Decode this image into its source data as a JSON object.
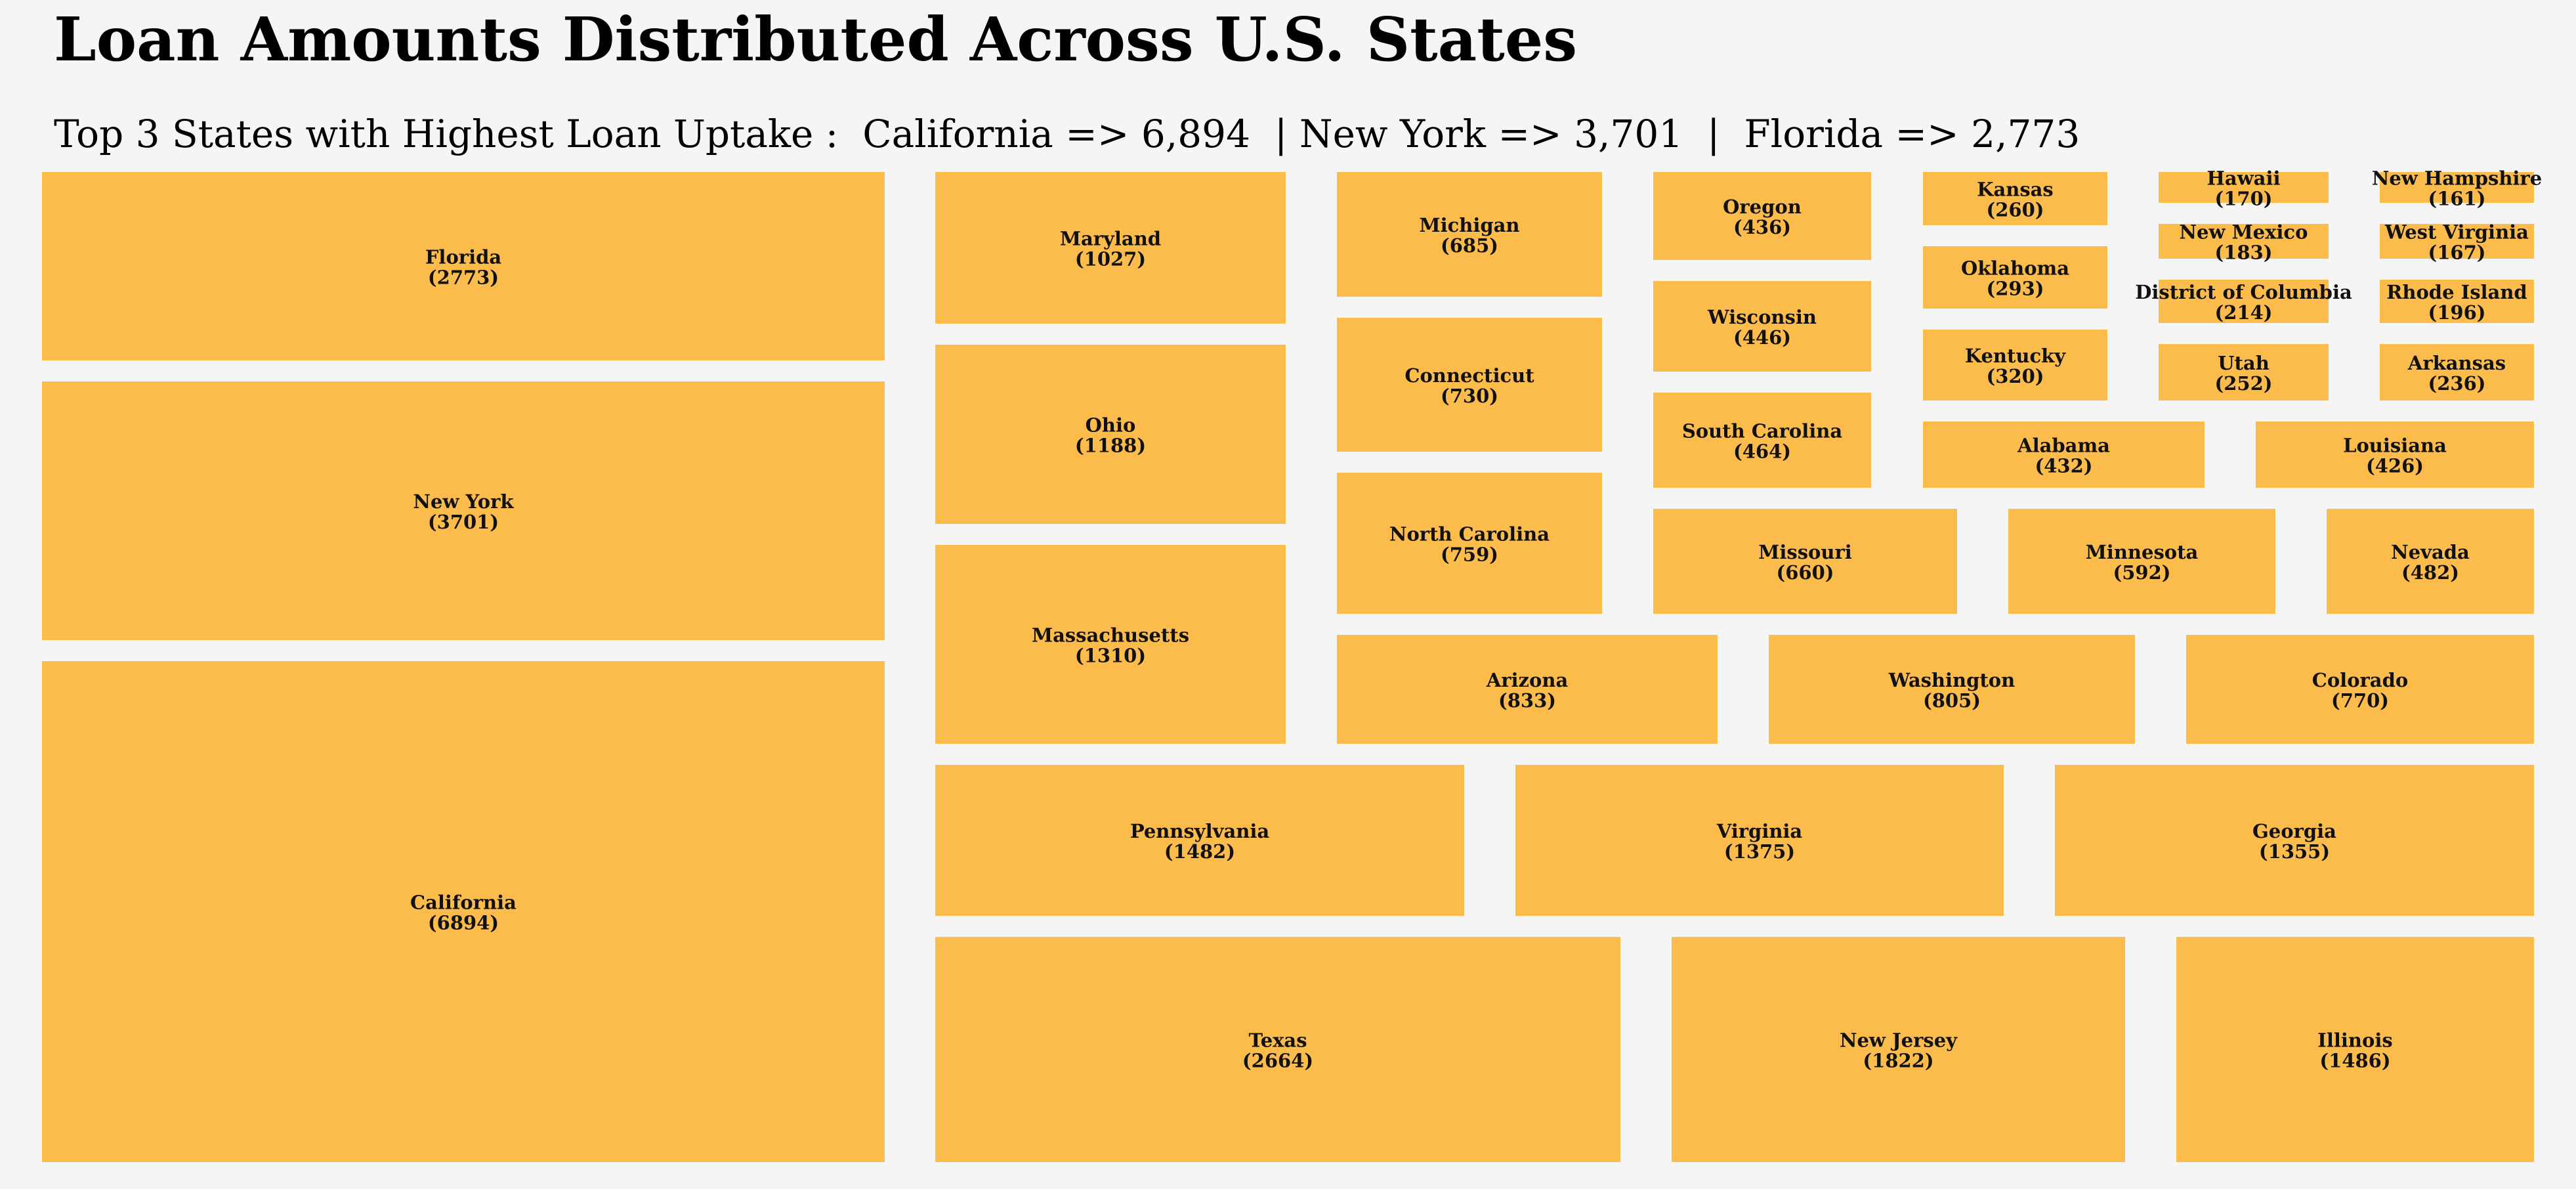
{
  "title": "Loan Amounts Distributed Across U.S. States",
  "subtitle": "Top 3 States with Highest Loan Uptake :  California => 6,894  | New York => 3,701  |  Florida => 2,773",
  "colors": {
    "tile": "#fbbc4c",
    "background": "#f5f5f5"
  },
  "chart_data": {
    "type": "treemap",
    "items": [
      {
        "label": "Florida",
        "value": 2773
      },
      {
        "label": "New York",
        "value": 3701
      },
      {
        "label": "California",
        "value": 6894
      },
      {
        "label": "Maryland",
        "value": 1027
      },
      {
        "label": "Ohio",
        "value": 1188
      },
      {
        "label": "Massachusetts",
        "value": 1310
      },
      {
        "label": "Michigan",
        "value": 685
      },
      {
        "label": "Connecticut",
        "value": 730
      },
      {
        "label": "North Carolina",
        "value": 759
      },
      {
        "label": "Oregon",
        "value": 436
      },
      {
        "label": "Wisconsin",
        "value": 446
      },
      {
        "label": "South Carolina",
        "value": 464
      },
      {
        "label": "Kansas",
        "value": 260
      },
      {
        "label": "Oklahoma",
        "value": 293
      },
      {
        "label": "Kentucky",
        "value": 320
      },
      {
        "label": "Hawaii",
        "value": 170
      },
      {
        "label": "New Mexico",
        "value": 183
      },
      {
        "label": "District of Columbia",
        "value": 214
      },
      {
        "label": "Utah",
        "value": 252
      },
      {
        "label": "New Hampshire",
        "value": 161
      },
      {
        "label": "West Virginia",
        "value": 167
      },
      {
        "label": "Rhode Island",
        "value": 196
      },
      {
        "label": "Arkansas",
        "value": 236
      },
      {
        "label": "Alabama",
        "value": 432
      },
      {
        "label": "Louisiana",
        "value": 426
      },
      {
        "label": "Missouri",
        "value": 660
      },
      {
        "label": "Minnesota",
        "value": 592
      },
      {
        "label": "Nevada",
        "value": 482
      },
      {
        "label": "Arizona",
        "value": 833
      },
      {
        "label": "Washington",
        "value": 805
      },
      {
        "label": "Colorado",
        "value": 770
      },
      {
        "label": "Pennsylvania",
        "value": 1482
      },
      {
        "label": "Virginia",
        "value": 1375
      },
      {
        "label": "Georgia",
        "value": 1355
      },
      {
        "label": "Texas",
        "value": 2664
      },
      {
        "label": "New Jersey",
        "value": 1822
      },
      {
        "label": "Illinois",
        "value": 1486
      }
    ]
  }
}
